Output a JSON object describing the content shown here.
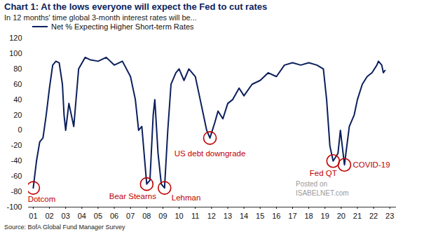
{
  "chart_data": {
    "type": "line",
    "title": "Chart 1: At the lows everyone will expect the Fed to cut rates",
    "subtitle": "In 12 months' time global 3-month interest rates will be...",
    "source": "Source: BofA Global Fund Manager Survey",
    "watermark": [
      "Posted on",
      "ISABELNET.com"
    ],
    "x": [
      2001.0,
      2001.2,
      2001.4,
      2001.6,
      2001.8,
      2002.0,
      2002.2,
      2002.4,
      2002.6,
      2002.8,
      2002.9,
      2003.0,
      2003.2,
      2003.5,
      2003.8,
      2004.2,
      2004.5,
      2005.0,
      2005.5,
      2006.0,
      2006.5,
      2007.0,
      2007.3,
      2007.5,
      2007.7,
      2008.0,
      2008.2,
      2008.4,
      2008.5,
      2008.7,
      2008.9,
      2009.1,
      2009.3,
      2009.5,
      2009.8,
      2010.0,
      2010.3,
      2010.6,
      2011.0,
      2011.3,
      2011.5,
      2011.7,
      2011.9,
      2012.2,
      2012.4,
      2012.7,
      2013.0,
      2013.3,
      2013.7,
      2014.0,
      2014.5,
      2015.0,
      2015.5,
      2016.0,
      2016.5,
      2017.0,
      2017.5,
      2018.0,
      2018.5,
      2018.9,
      2019.1,
      2019.3,
      2019.5,
      2019.8,
      2019.95,
      2020.2,
      2020.5,
      2020.8,
      2021.0,
      2021.3,
      2021.6,
      2021.9,
      2022.2,
      2022.3,
      2022.5,
      2022.6,
      2022.7
    ],
    "series": [
      {
        "name": "Net % Expecting Higher Short-term Rates",
        "color": "#0b1f5c",
        "values": [
          -75,
          -40,
          -15,
          -10,
          20,
          55,
          85,
          90,
          88,
          60,
          20,
          0,
          35,
          5,
          80,
          95,
          92,
          90,
          95,
          85,
          90,
          70,
          40,
          0,
          5,
          -70,
          -65,
          20,
          40,
          -30,
          -70,
          -75,
          0,
          60,
          75,
          80,
          65,
          80,
          70,
          40,
          20,
          0,
          -10,
          10,
          25,
          15,
          35,
          40,
          55,
          45,
          60,
          65,
          75,
          70,
          85,
          88,
          85,
          88,
          85,
          80,
          40,
          -20,
          -40,
          -30,
          0,
          -45,
          5,
          20,
          40,
          60,
          70,
          75,
          85,
          90,
          85,
          75,
          78
        ]
      }
    ],
    "annotations": [
      {
        "text": "Dotcom",
        "x": 2001.0,
        "y": -75
      },
      {
        "text": "Bear Stearns",
        "x": 2008.0,
        "y": -70
      },
      {
        "text": "Lehman",
        "x": 2009.1,
        "y": -75
      },
      {
        "text": "US debt downgrade",
        "x": 2011.9,
        "y": -10
      },
      {
        "text": "Fed QT",
        "x": 2019.5,
        "y": -40
      },
      {
        "text": "COVID-19",
        "x": 2020.2,
        "y": -45
      }
    ],
    "annotation_color": "#c00000",
    "xlim": [
      2000.7,
      2023.4
    ],
    "xticks": [
      {
        "value": 2001,
        "label": "01"
      },
      {
        "value": 2002,
        "label": "02"
      },
      {
        "value": 2003,
        "label": "03"
      },
      {
        "value": 2004,
        "label": "04"
      },
      {
        "value": 2005,
        "label": "05"
      },
      {
        "value": 2006,
        "label": "06"
      },
      {
        "value": 2007,
        "label": "07"
      },
      {
        "value": 2008,
        "label": "08"
      },
      {
        "value": 2009,
        "label": "09"
      },
      {
        "value": 2010,
        "label": "10"
      },
      {
        "value": 2011,
        "label": "11"
      },
      {
        "value": 2012,
        "label": "12"
      },
      {
        "value": 2013,
        "label": "13"
      },
      {
        "value": 2014,
        "label": "14"
      },
      {
        "value": 2015,
        "label": "15"
      },
      {
        "value": 2016,
        "label": "16"
      },
      {
        "value": 2017,
        "label": "17"
      },
      {
        "value": 2018,
        "label": "18"
      },
      {
        "value": 2019,
        "label": "19"
      },
      {
        "value": 2020,
        "label": "20"
      },
      {
        "value": 2021,
        "label": "21"
      },
      {
        "value": 2022,
        "label": "22"
      },
      {
        "value": 2023,
        "label": "23"
      }
    ],
    "ylim": [
      -100,
      120
    ],
    "yticks": [
      -100,
      -80,
      -60,
      -40,
      -20,
      0,
      20,
      40,
      60,
      80,
      100,
      120
    ],
    "grid": false,
    "legend": "top-left"
  }
}
